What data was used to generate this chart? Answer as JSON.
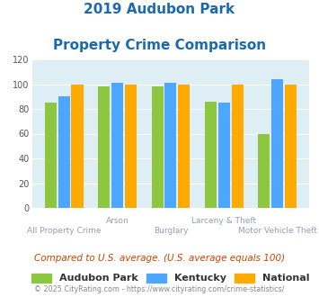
{
  "title_line1": "2019 Audubon Park",
  "title_line2": "Property Crime Comparison",
  "categories": [
    "All Property Crime",
    "Arson",
    "Burglary",
    "Larceny & Theft",
    "Motor Vehicle Theft"
  ],
  "top_labels": [
    "",
    "Arson",
    "",
    "Larceny & Theft",
    ""
  ],
  "bottom_labels": [
    "All Property Crime",
    "",
    "Burglary",
    "",
    "Motor Vehicle Theft"
  ],
  "audubon_park": [
    85,
    98,
    98,
    86,
    60
  ],
  "kentucky": [
    90,
    101,
    101,
    85,
    104
  ],
  "national": [
    100,
    100,
    100,
    100,
    100
  ],
  "colors": {
    "audubon_park": "#8dc63f",
    "kentucky": "#4da6ff",
    "national": "#ffaa00"
  },
  "ylim": [
    0,
    120
  ],
  "yticks": [
    0,
    20,
    40,
    60,
    80,
    100,
    120
  ],
  "bg_color": "#ddeef5",
  "title_color": "#1a6aad",
  "label_color": "#9999bb",
  "note_text": "Compared to U.S. average. (U.S. average equals 100)",
  "note_color": "#cc4400",
  "footer_text": "© 2025 CityRating.com - https://www.cityrating.com/crime-statistics/",
  "footer_color": "#888888",
  "legend_labels": [
    "Audubon Park",
    "Kentucky",
    "National"
  ]
}
